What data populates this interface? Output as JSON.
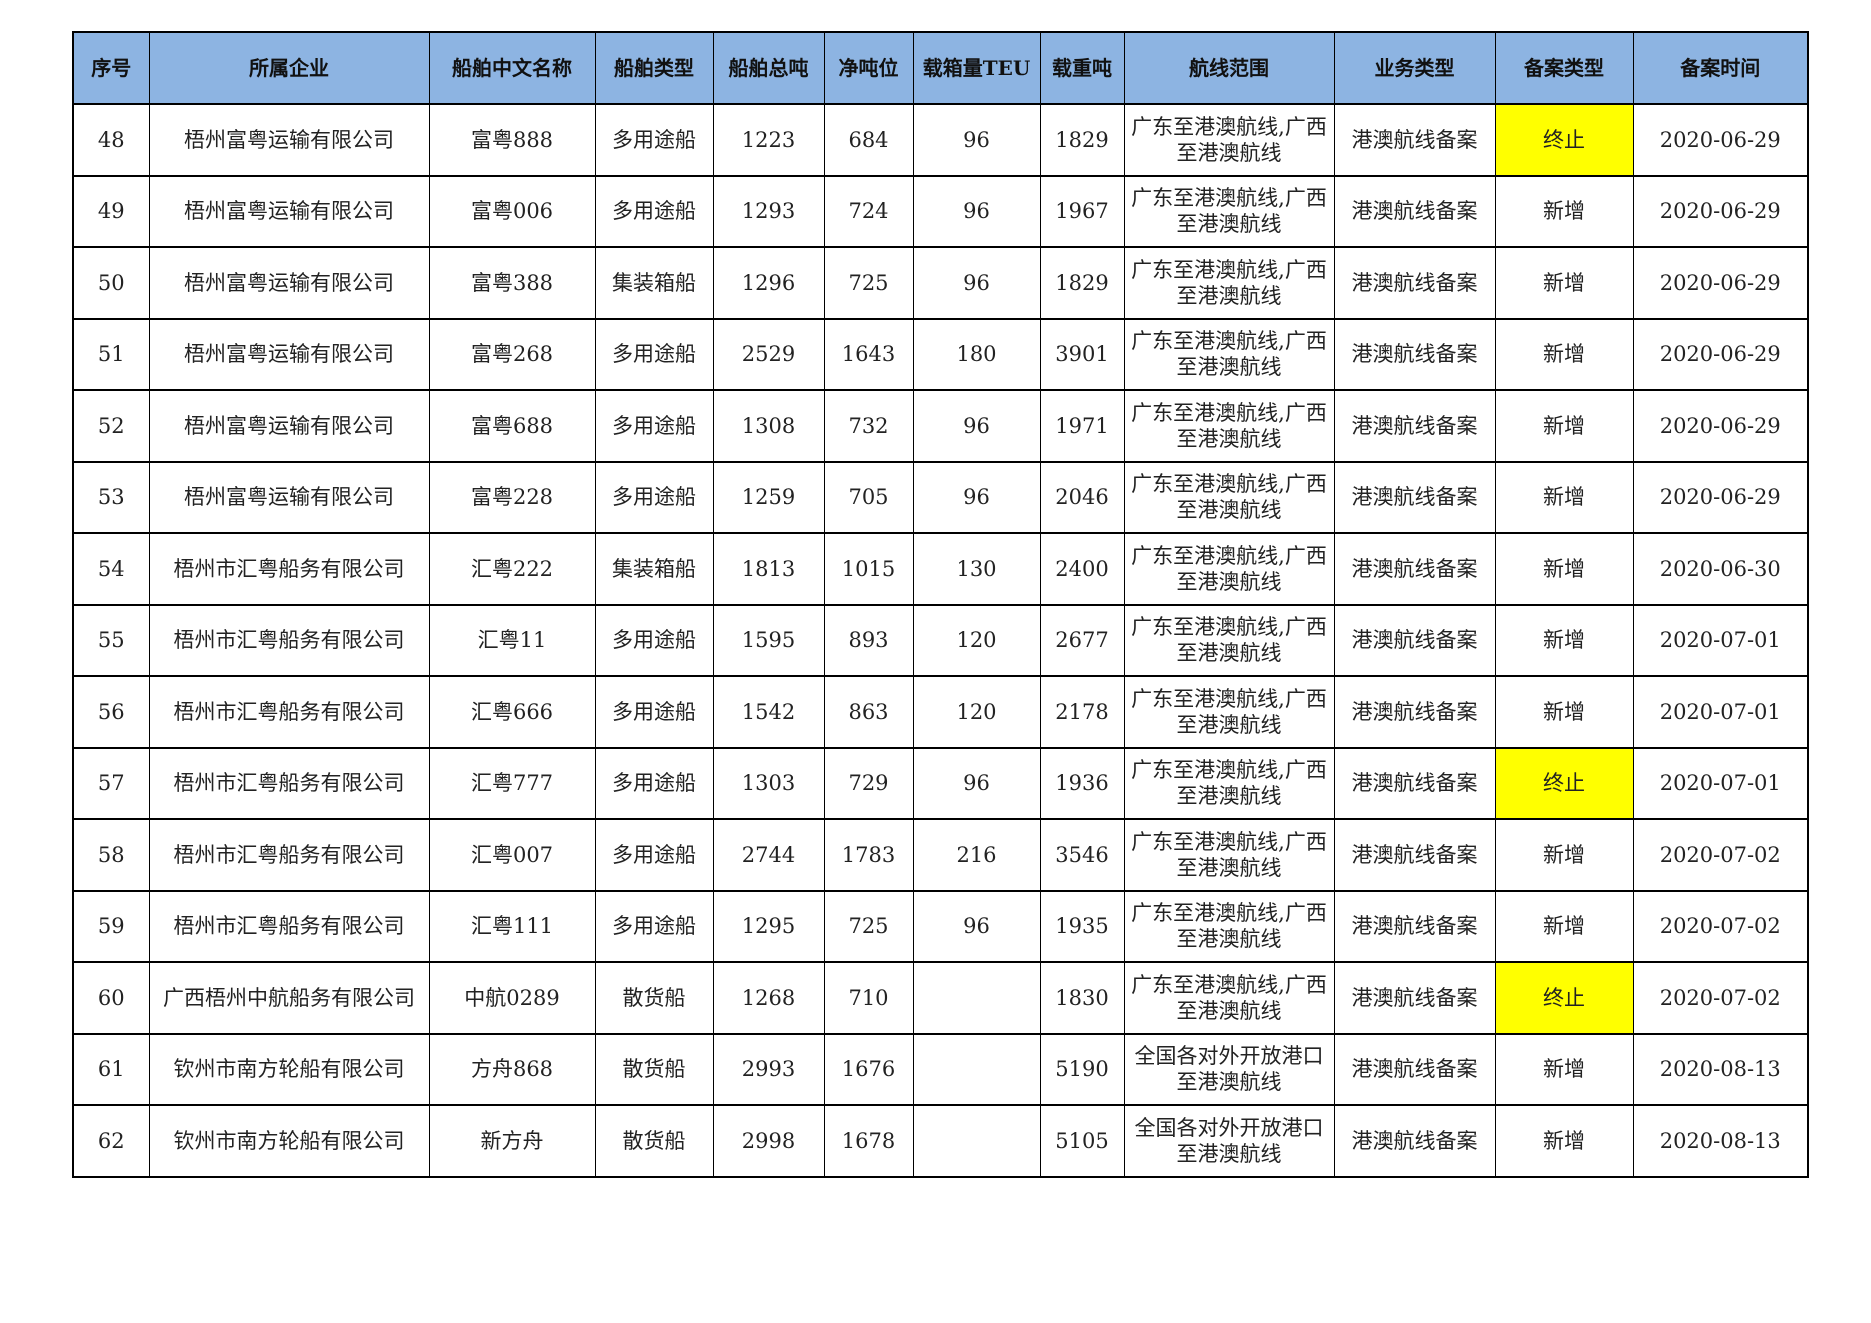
{
  "colors": {
    "header_bg": "#8DB4E2",
    "highlight": "#FFFF00"
  },
  "highlight_value": "终止",
  "columns": [
    "序号",
    "所属企业",
    "船舶中文名称",
    "船舶类型",
    "船舶总吨",
    "净吨位",
    "载箱量TEU",
    "载重吨",
    "航线范围",
    "业务类型",
    "备案类型",
    "备案时间"
  ],
  "rows": [
    [
      "48",
      "梧州富粤运输有限公司",
      "富粤888",
      "多用途船",
      "1223",
      "684",
      "96",
      "1829",
      "广东至港澳航线,广西至港澳航线",
      "港澳航线备案",
      "终止",
      "2020-06-29"
    ],
    [
      "49",
      "梧州富粤运输有限公司",
      "富粤006",
      "多用途船",
      "1293",
      "724",
      "96",
      "1967",
      "广东至港澳航线,广西至港澳航线",
      "港澳航线备案",
      "新增",
      "2020-06-29"
    ],
    [
      "50",
      "梧州富粤运输有限公司",
      "富粤388",
      "集装箱船",
      "1296",
      "725",
      "96",
      "1829",
      "广东至港澳航线,广西至港澳航线",
      "港澳航线备案",
      "新增",
      "2020-06-29"
    ],
    [
      "51",
      "梧州富粤运输有限公司",
      "富粤268",
      "多用途船",
      "2529",
      "1643",
      "180",
      "3901",
      "广东至港澳航线,广西至港澳航线",
      "港澳航线备案",
      "新增",
      "2020-06-29"
    ],
    [
      "52",
      "梧州富粤运输有限公司",
      "富粤688",
      "多用途船",
      "1308",
      "732",
      "96",
      "1971",
      "广东至港澳航线,广西至港澳航线",
      "港澳航线备案",
      "新增",
      "2020-06-29"
    ],
    [
      "53",
      "梧州富粤运输有限公司",
      "富粤228",
      "多用途船",
      "1259",
      "705",
      "96",
      "2046",
      "广东至港澳航线,广西至港澳航线",
      "港澳航线备案",
      "新增",
      "2020-06-29"
    ],
    [
      "54",
      "梧州市汇粤船务有限公司",
      "汇粤222",
      "集装箱船",
      "1813",
      "1015",
      "130",
      "2400",
      "广东至港澳航线,广西至港澳航线",
      "港澳航线备案",
      "新增",
      "2020-06-30"
    ],
    [
      "55",
      "梧州市汇粤船务有限公司",
      "汇粤11",
      "多用途船",
      "1595",
      "893",
      "120",
      "2677",
      "广东至港澳航线,广西至港澳航线",
      "港澳航线备案",
      "新增",
      "2020-07-01"
    ],
    [
      "56",
      "梧州市汇粤船务有限公司",
      "汇粤666",
      "多用途船",
      "1542",
      "863",
      "120",
      "2178",
      "广东至港澳航线,广西至港澳航线",
      "港澳航线备案",
      "新增",
      "2020-07-01"
    ],
    [
      "57",
      "梧州市汇粤船务有限公司",
      "汇粤777",
      "多用途船",
      "1303",
      "729",
      "96",
      "1936",
      "广东至港澳航线,广西至港澳航线",
      "港澳航线备案",
      "终止",
      "2020-07-01"
    ],
    [
      "58",
      "梧州市汇粤船务有限公司",
      "汇粤007",
      "多用途船",
      "2744",
      "1783",
      "216",
      "3546",
      "广东至港澳航线,广西至港澳航线",
      "港澳航线备案",
      "新增",
      "2020-07-02"
    ],
    [
      "59",
      "梧州市汇粤船务有限公司",
      "汇粤111",
      "多用途船",
      "1295",
      "725",
      "96",
      "1935",
      "广东至港澳航线,广西至港澳航线",
      "港澳航线备案",
      "新增",
      "2020-07-02"
    ],
    [
      "60",
      "广西梧州中航船务有限公司",
      "中航0289",
      "散货船",
      "1268",
      "710",
      "",
      "1830",
      "广东至港澳航线,广西至港澳航线",
      "港澳航线备案",
      "终止",
      "2020-07-02"
    ],
    [
      "61",
      "钦州市南方轮船有限公司",
      "方舟868",
      "散货船",
      "2993",
      "1676",
      "",
      "5190",
      "全国各对外开放港口至港澳航线",
      "港澳航线备案",
      "新增",
      "2020-08-13"
    ],
    [
      "62",
      "钦州市南方轮船有限公司",
      "新方舟",
      "散货船",
      "2998",
      "1678",
      "",
      "5105",
      "全国各对外开放港口至港澳航线",
      "港澳航线备案",
      "新增",
      "2020-08-13"
    ]
  ]
}
